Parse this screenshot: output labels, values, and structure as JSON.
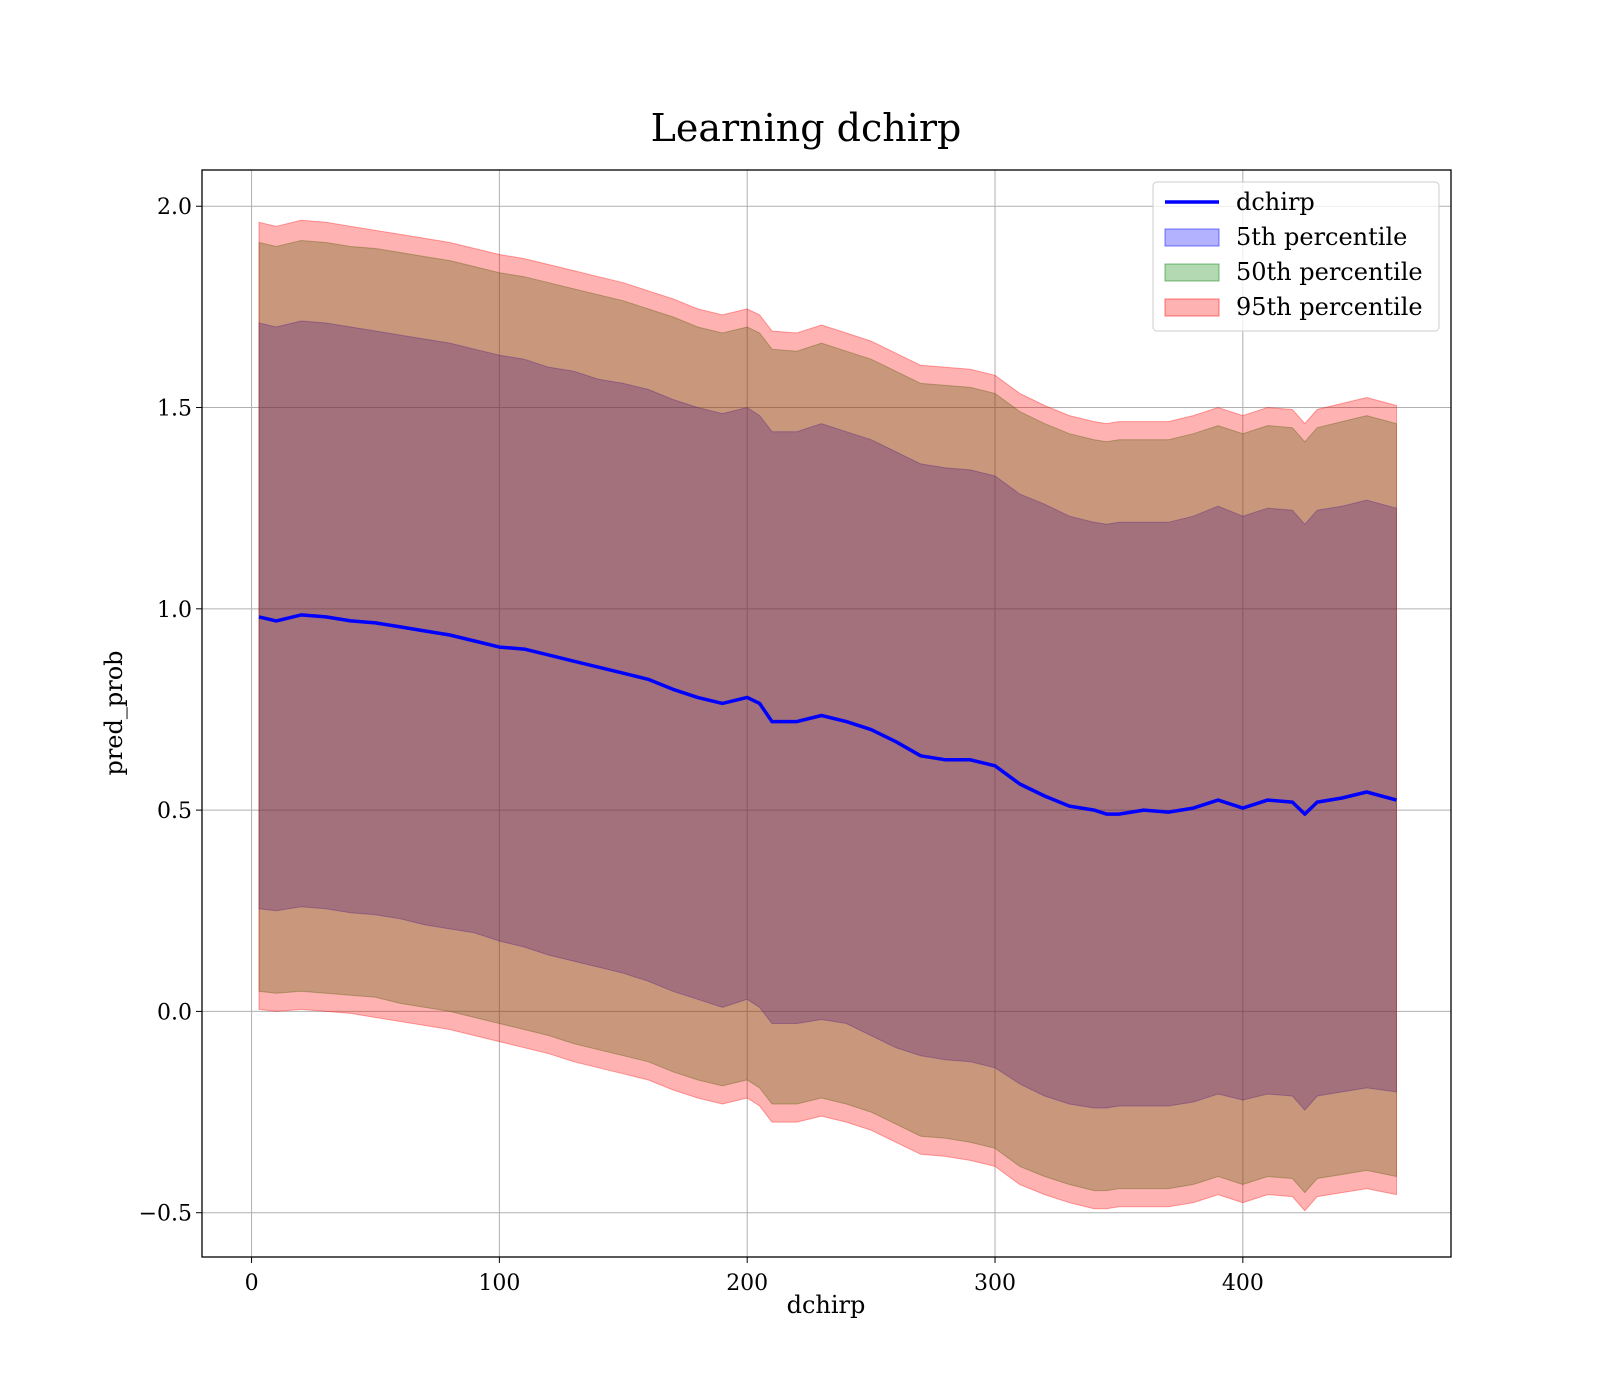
{
  "chart_data": {
    "type": "area",
    "title": "Learning dchirp",
    "xlabel": "dchirp",
    "ylabel": "pred_prob",
    "xlim": [
      -20,
      484
    ],
    "ylim": [
      -0.61,
      2.09
    ],
    "xticks": [
      0,
      100,
      200,
      300,
      400
    ],
    "xtick_labels": [
      "0",
      "100",
      "200",
      "300",
      "400"
    ],
    "yticks": [
      -0.5,
      0.0,
      0.5,
      1.0,
      1.5,
      2.0
    ],
    "ytick_labels": [
      "−0.5",
      "0.0",
      "0.5",
      "1.0",
      "1.5",
      "2.0"
    ],
    "grid": true,
    "legend_position": "top-right",
    "x": [
      3,
      10,
      20,
      30,
      40,
      50,
      60,
      70,
      80,
      90,
      100,
      110,
      120,
      130,
      140,
      150,
      160,
      170,
      180,
      190,
      200,
      205,
      210,
      220,
      230,
      240,
      250,
      260,
      270,
      280,
      290,
      300,
      310,
      320,
      330,
      340,
      345,
      350,
      360,
      370,
      380,
      390,
      400,
      410,
      420,
      425,
      430,
      440,
      450,
      462
    ],
    "series": [
      {
        "name": "dchirp",
        "kind": "line",
        "color": "#0000ff",
        "values": [
          0.98,
          0.97,
          0.985,
          0.98,
          0.97,
          0.965,
          0.955,
          0.945,
          0.935,
          0.92,
          0.905,
          0.9,
          0.885,
          0.87,
          0.855,
          0.84,
          0.825,
          0.8,
          0.78,
          0.765,
          0.78,
          0.765,
          0.72,
          0.72,
          0.735,
          0.72,
          0.7,
          0.67,
          0.635,
          0.625,
          0.625,
          0.61,
          0.565,
          0.535,
          0.51,
          0.5,
          0.49,
          0.49,
          0.5,
          0.495,
          0.505,
          0.525,
          0.505,
          0.525,
          0.52,
          0.49,
          0.52,
          0.53,
          0.545,
          0.525
        ]
      },
      {
        "name": "5th percentile",
        "kind": "band",
        "color": "#0000ff",
        "opacity": 0.3,
        "lower": [
          0.255,
          0.25,
          0.26,
          0.255,
          0.245,
          0.24,
          0.23,
          0.215,
          0.205,
          0.195,
          0.175,
          0.16,
          0.14,
          0.125,
          0.11,
          0.095,
          0.075,
          0.05,
          0.03,
          0.01,
          0.03,
          0.01,
          -0.03,
          -0.03,
          -0.02,
          -0.03,
          -0.06,
          -0.09,
          -0.11,
          -0.12,
          -0.125,
          -0.14,
          -0.18,
          -0.21,
          -0.23,
          -0.24,
          -0.24,
          -0.235,
          -0.235,
          -0.235,
          -0.225,
          -0.205,
          -0.22,
          -0.205,
          -0.21,
          -0.245,
          -0.21,
          -0.2,
          -0.19,
          -0.2
        ],
        "upper": [
          1.71,
          1.7,
          1.715,
          1.71,
          1.7,
          1.69,
          1.68,
          1.67,
          1.66,
          1.645,
          1.63,
          1.62,
          1.6,
          1.59,
          1.57,
          1.56,
          1.545,
          1.52,
          1.5,
          1.485,
          1.5,
          1.48,
          1.44,
          1.44,
          1.46,
          1.44,
          1.42,
          1.39,
          1.36,
          1.35,
          1.345,
          1.33,
          1.285,
          1.26,
          1.23,
          1.215,
          1.21,
          1.215,
          1.215,
          1.215,
          1.23,
          1.255,
          1.23,
          1.25,
          1.245,
          1.21,
          1.245,
          1.255,
          1.27,
          1.25
        ]
      },
      {
        "name": "50th percentile",
        "kind": "band",
        "color": "#008000",
        "opacity": 0.3,
        "lower": [
          0.05,
          0.045,
          0.05,
          0.045,
          0.04,
          0.035,
          0.02,
          0.01,
          0.0,
          -0.015,
          -0.03,
          -0.045,
          -0.06,
          -0.08,
          -0.095,
          -0.11,
          -0.125,
          -0.15,
          -0.17,
          -0.185,
          -0.17,
          -0.19,
          -0.23,
          -0.23,
          -0.215,
          -0.23,
          -0.25,
          -0.28,
          -0.31,
          -0.315,
          -0.325,
          -0.34,
          -0.385,
          -0.41,
          -0.43,
          -0.445,
          -0.445,
          -0.44,
          -0.44,
          -0.44,
          -0.43,
          -0.41,
          -0.43,
          -0.41,
          -0.415,
          -0.45,
          -0.415,
          -0.405,
          -0.395,
          -0.41
        ],
        "upper": [
          1.91,
          1.9,
          1.915,
          1.91,
          1.9,
          1.895,
          1.885,
          1.875,
          1.865,
          1.85,
          1.835,
          1.825,
          1.81,
          1.795,
          1.78,
          1.765,
          1.745,
          1.725,
          1.7,
          1.685,
          1.7,
          1.685,
          1.645,
          1.64,
          1.66,
          1.64,
          1.62,
          1.59,
          1.56,
          1.555,
          1.55,
          1.535,
          1.49,
          1.46,
          1.435,
          1.42,
          1.415,
          1.42,
          1.42,
          1.42,
          1.435,
          1.455,
          1.435,
          1.455,
          1.45,
          1.415,
          1.45,
          1.465,
          1.48,
          1.46
        ]
      },
      {
        "name": "95th percentile",
        "kind": "band",
        "color": "#ff0000",
        "opacity": 0.3,
        "lower": [
          0.005,
          0.0,
          0.005,
          0.0,
          -0.005,
          -0.015,
          -0.025,
          -0.035,
          -0.045,
          -0.06,
          -0.075,
          -0.09,
          -0.105,
          -0.125,
          -0.14,
          -0.155,
          -0.17,
          -0.195,
          -0.215,
          -0.23,
          -0.215,
          -0.235,
          -0.275,
          -0.275,
          -0.26,
          -0.275,
          -0.295,
          -0.325,
          -0.355,
          -0.36,
          -0.37,
          -0.385,
          -0.43,
          -0.455,
          -0.475,
          -0.49,
          -0.49,
          -0.485,
          -0.485,
          -0.485,
          -0.475,
          -0.455,
          -0.475,
          -0.455,
          -0.46,
          -0.495,
          -0.46,
          -0.45,
          -0.44,
          -0.455
        ],
        "upper": [
          1.96,
          1.95,
          1.965,
          1.96,
          1.95,
          1.94,
          1.93,
          1.92,
          1.91,
          1.895,
          1.88,
          1.87,
          1.855,
          1.84,
          1.825,
          1.81,
          1.79,
          1.77,
          1.745,
          1.73,
          1.745,
          1.73,
          1.69,
          1.685,
          1.705,
          1.685,
          1.665,
          1.635,
          1.605,
          1.6,
          1.595,
          1.58,
          1.535,
          1.505,
          1.48,
          1.465,
          1.46,
          1.465,
          1.465,
          1.465,
          1.48,
          1.5,
          1.48,
          1.5,
          1.495,
          1.46,
          1.495,
          1.51,
          1.525,
          1.505
        ]
      }
    ]
  }
}
